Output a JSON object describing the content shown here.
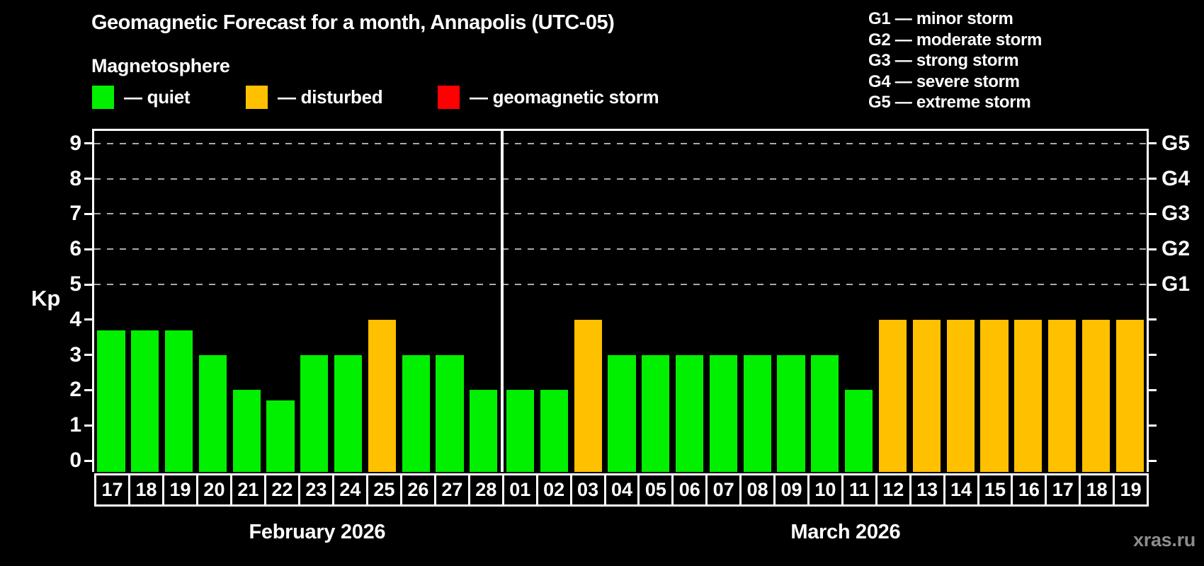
{
  "title": "Geomagnetic Forecast for a month, Annapolis (UTC-05)",
  "subtitle": "Magnetosphere",
  "legend": [
    {
      "key": "quiet",
      "label": "— quiet",
      "color": "#00f000"
    },
    {
      "key": "disturbed",
      "label": "— disturbed",
      "color": "#ffc000"
    },
    {
      "key": "storm",
      "label": "— geomagnetic storm",
      "color": "#ff0000"
    }
  ],
  "g_legend": [
    "G1 — minor storm",
    "G2 — moderate storm",
    "G3 — strong storm",
    "G4 — severe storm",
    "G5 — extreme storm"
  ],
  "watermark": "xras.ru",
  "chart_data": {
    "type": "bar",
    "ylabel": "Kp",
    "ylim": [
      0,
      9
    ],
    "y_ticks": [
      0,
      1,
      2,
      3,
      4,
      5,
      6,
      7,
      8,
      9
    ],
    "gridlines_at": [
      5,
      6,
      7,
      8,
      9
    ],
    "grid_style": "dashed",
    "legend_position": "top-left",
    "right_axis_labels": [
      {
        "value": 5,
        "label": "G1"
      },
      {
        "value": 6,
        "label": "G2"
      },
      {
        "value": 7,
        "label": "G3"
      },
      {
        "value": 8,
        "label": "G4"
      },
      {
        "value": 9,
        "label": "G5"
      }
    ],
    "months": [
      {
        "label": "February 2026",
        "days": [
          {
            "day": "17",
            "kp": 3.7,
            "status": "quiet"
          },
          {
            "day": "18",
            "kp": 3.7,
            "status": "quiet"
          },
          {
            "day": "19",
            "kp": 3.7,
            "status": "quiet"
          },
          {
            "day": "20",
            "kp": 3,
            "status": "quiet"
          },
          {
            "day": "21",
            "kp": 2,
            "status": "quiet"
          },
          {
            "day": "22",
            "kp": 1.7,
            "status": "quiet"
          },
          {
            "day": "23",
            "kp": 3,
            "status": "quiet"
          },
          {
            "day": "24",
            "kp": 3,
            "status": "quiet"
          },
          {
            "day": "25",
            "kp": 4,
            "status": "disturbed"
          },
          {
            "day": "26",
            "kp": 3,
            "status": "quiet"
          },
          {
            "day": "27",
            "kp": 3,
            "status": "quiet"
          },
          {
            "day": "28",
            "kp": 2,
            "status": "quiet"
          }
        ]
      },
      {
        "label": "March 2026",
        "days": [
          {
            "day": "01",
            "kp": 2,
            "status": "quiet"
          },
          {
            "day": "02",
            "kp": 2,
            "status": "quiet"
          },
          {
            "day": "03",
            "kp": 4,
            "status": "disturbed"
          },
          {
            "day": "04",
            "kp": 3,
            "status": "quiet"
          },
          {
            "day": "05",
            "kp": 3,
            "status": "quiet"
          },
          {
            "day": "06",
            "kp": 3,
            "status": "quiet"
          },
          {
            "day": "07",
            "kp": 3,
            "status": "quiet"
          },
          {
            "day": "08",
            "kp": 3,
            "status": "quiet"
          },
          {
            "day": "09",
            "kp": 3,
            "status": "quiet"
          },
          {
            "day": "10",
            "kp": 3,
            "status": "quiet"
          },
          {
            "day": "11",
            "kp": 2,
            "status": "quiet"
          },
          {
            "day": "12",
            "kp": 4,
            "status": "disturbed"
          },
          {
            "day": "13",
            "kp": 4,
            "status": "disturbed"
          },
          {
            "day": "14",
            "kp": 4,
            "status": "disturbed"
          },
          {
            "day": "15",
            "kp": 4,
            "status": "disturbed"
          },
          {
            "day": "16",
            "kp": 4,
            "status": "disturbed"
          },
          {
            "day": "17",
            "kp": 4,
            "status": "disturbed"
          },
          {
            "day": "18",
            "kp": 4,
            "status": "disturbed"
          },
          {
            "day": "19",
            "kp": 4,
            "status": "disturbed"
          }
        ]
      }
    ]
  }
}
